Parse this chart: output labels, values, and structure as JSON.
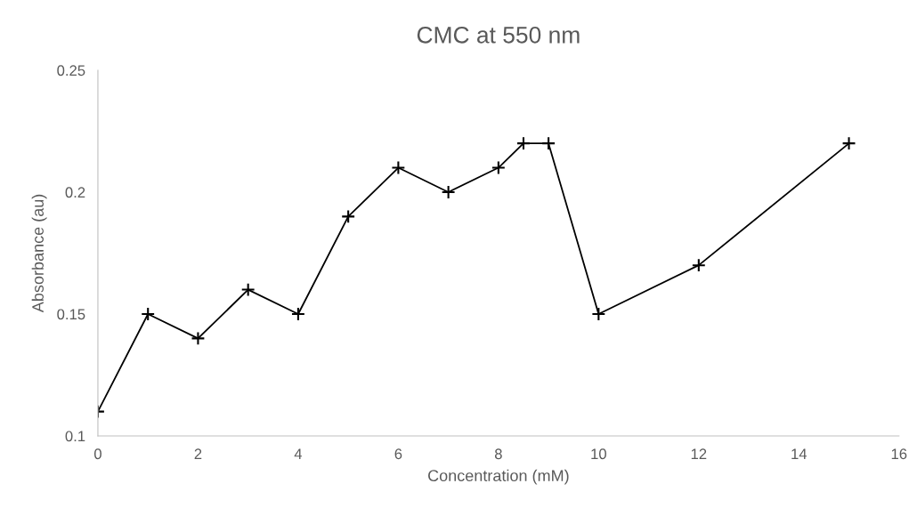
{
  "chart_data": {
    "type": "line",
    "title": "CMC at 550 nm",
    "xlabel": "Concentration (mM)",
    "ylabel": "Absorbance (au)",
    "x": [
      0,
      1,
      2,
      3,
      4,
      5,
      6,
      7,
      8,
      8.5,
      9,
      10,
      12,
      15
    ],
    "series": [
      {
        "color": "#000000",
        "values": [
          0.11,
          0.15,
          0.14,
          0.16,
          0.15,
          0.19,
          0.21,
          0.2,
          0.21,
          0.22,
          0.22,
          0.15,
          0.17,
          0.22
        ]
      }
    ],
    "xlim": [
      0,
      16
    ],
    "xticks": [
      0,
      2,
      4,
      6,
      8,
      10,
      12,
      14,
      16
    ],
    "ylim": [
      0.1,
      0.25
    ],
    "yticks": [
      0.1,
      0.15,
      0.2,
      0.25
    ],
    "grid": false,
    "marker": "cross",
    "line_style": "solid"
  }
}
